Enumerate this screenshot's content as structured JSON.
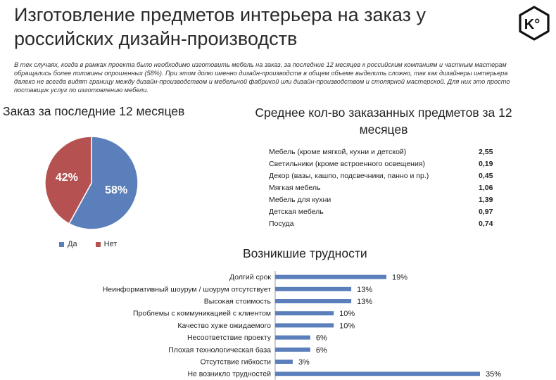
{
  "header": {
    "title": "Изготовление предметов интерьера на заказ у российских дизайн-производств",
    "logo_text": "K°"
  },
  "intro_text": "В тех случаях, когда в рамках проекта было необходимо изготовить мебель на заказ, за последние 12 месяцев к российским компаниям и частным мастерам обращались более половины опрошенных (58%).  При этом долю именно дизайн-производств в общем объеме выделить сложно, так как дизайнеры интерьера далеко не всегда видят границу между дизайн-производством и мебельной фабрикой или дизайн-производством и столярной мастерской. Для них это просто поставщик услуг по изготовлению мебели.",
  "colors": {
    "blue": "#5b7fba",
    "red": "#b55150"
  },
  "chart_data": [
    {
      "type": "pie",
      "title": "Заказ за последние 12 месяцев",
      "categories": [
        "Да",
        "Нет"
      ],
      "values": [
        58,
        42
      ],
      "labels": [
        "58%",
        "42%"
      ],
      "colors": [
        "#5b7fba",
        "#b55150"
      ],
      "legend": "bottom"
    },
    {
      "type": "table",
      "title": "Среднее кол-во заказанных предметов за 12 месяцев",
      "rows": [
        {
          "label": "Мебель (кроме мягкой, кухни и детской)",
          "value": "2,55"
        },
        {
          "label": "Светильники (кроме встроенного освещения)",
          "value": "0,19"
        },
        {
          "label": "Декор (вазы, кашпо, подсвечники, панно и пр.)",
          "value": "0,45"
        },
        {
          "label": "Мягкая мебель",
          "value": "1,06"
        },
        {
          "label": "Мебель для кухни",
          "value": "1,39"
        },
        {
          "label": "Детская мебель",
          "value": "0,97"
        },
        {
          "label": "Посуда",
          "value": "0,74"
        }
      ]
    },
    {
      "type": "bar",
      "orientation": "horizontal",
      "title": "Возникшие трудности",
      "categories": [
        "Долгий срок",
        "Неинформативный шоурум / шоурум отсутствует",
        "Высокая стоимость",
        "Проблемы с коммуникацией с клиентом",
        "Качество хуже ожидаемого",
        "Несоответствие проекту",
        "Плохая технологическая база",
        "Отсутствие гибкости",
        "Не возникло трудностей"
      ],
      "values": [
        19,
        13,
        13,
        10,
        10,
        6,
        6,
        3,
        35
      ],
      "labels": [
        "19%",
        "13%",
        "13%",
        "10%",
        "10%",
        "6%",
        "6%",
        "3%",
        "35%"
      ],
      "xlim": [
        0,
        35
      ],
      "color": "#5b7fba"
    }
  ]
}
